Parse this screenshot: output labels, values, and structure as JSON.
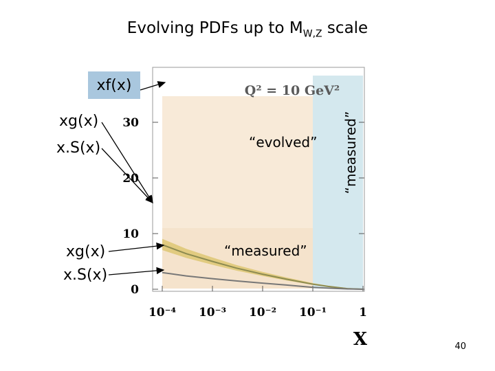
{
  "slide": {
    "title_main": "Evolving PDFs up to M",
    "title_sub": "W,Z",
    "title_end": " scale",
    "page_number": "40"
  },
  "labels": {
    "xf": "xf(x)",
    "xg_top": "xg(x)",
    "xS_top": "x.S(x)",
    "xg_bottom": "xg(x)",
    "xS_bottom": "x.S(x)",
    "evolved": "“evolved”",
    "measured_vertical": "“measured”",
    "measured_horizontal": "“measured”"
  },
  "chart_data": {
    "type": "line",
    "annotation": "Q² = 10 GeV²",
    "xlabel": "x",
    "xscale": "log",
    "xlim": [
      0.0001,
      1
    ],
    "ylim": [
      0,
      40
    ],
    "xticks": [
      0.0001,
      0.001,
      0.01,
      0.1,
      1
    ],
    "xtick_labels": [
      "10⁻⁴",
      "10⁻³",
      "10⁻²",
      "10⁻¹",
      "1"
    ],
    "yticks": [
      0,
      10,
      20,
      30
    ],
    "ytick_labels": [
      "0",
      "10",
      "20",
      "30"
    ],
    "regions": {
      "evolved_color": "#f8ead8",
      "measured_color": "#d4e8ee"
    },
    "series": [
      {
        "color": "#8c8a50",
        "band_color": "#d8c060",
        "x": [
          0.0001,
          0.0003,
          0.001,
          0.003,
          0.01,
          0.03,
          0.1,
          0.2,
          0.5,
          1
        ],
        "y": [
          8.0,
          6.4,
          5.0,
          3.8,
          2.7,
          1.8,
          0.9,
          0.5,
          0.1,
          0
        ]
      },
      {
        "color": "#777777",
        "x": [
          0.0001,
          0.0003,
          0.001,
          0.003,
          0.01,
          0.03,
          0.1,
          0.2,
          0.5,
          1
        ],
        "y": [
          3.0,
          2.4,
          1.9,
          1.5,
          1.1,
          0.75,
          0.35,
          0.2,
          0.05,
          0
        ]
      }
    ]
  }
}
